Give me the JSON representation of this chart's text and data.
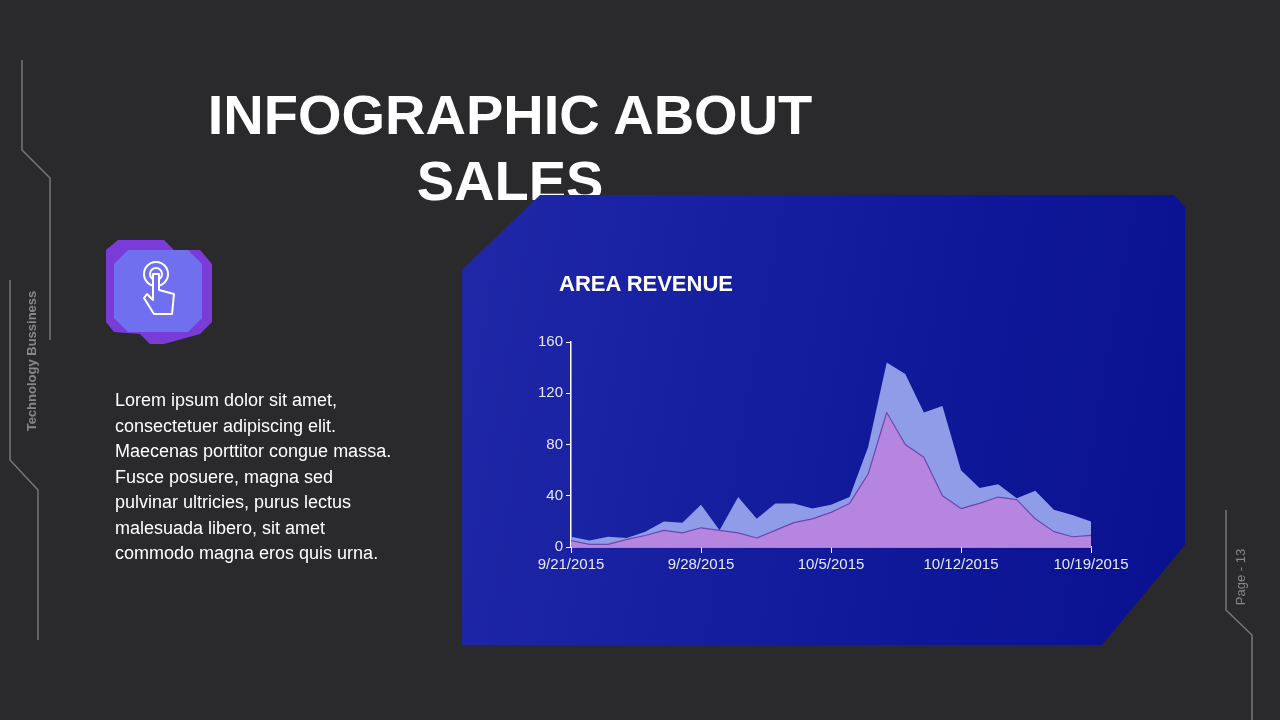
{
  "chart_data": {
    "type": "area",
    "title": "INFOGRAPHIC ABOUT SALES",
    "subtitle": "AREA REVENUE",
    "annotations": [
      "Lorem ipsum dolor sit amet, consectetuer adipiscing elit. Maecenas porttitor congue massa. Fusce posuere, magna sed pulvinar ultricies, purus lectus malesuada libero, sit amet commodo magna eros quis urna.",
      "Technology Bussiness",
      "Page - 13"
    ],
    "x": [
      "2015-09-21",
      "2015-09-22",
      "2015-09-23",
      "2015-09-24",
      "2015-09-25",
      "2015-09-26",
      "2015-09-27",
      "2015-09-28",
      "2015-09-29",
      "2015-09-30",
      "2015-10-01",
      "2015-10-02",
      "2015-10-03",
      "2015-10-04",
      "2015-10-05",
      "2015-10-06",
      "2015-10-07",
      "2015-10-08",
      "2015-10-09",
      "2015-10-10",
      "2015-10-11",
      "2015-10-12",
      "2015-10-13",
      "2015-10-14",
      "2015-10-15",
      "2015-10-16",
      "2015-10-17",
      "2015-10-18",
      "2015-10-19"
    ],
    "series": [
      {
        "color": "#8f9ce8",
        "values": [
          8,
          5,
          8,
          7,
          12,
          20,
          19,
          33,
          13,
          39,
          22,
          34,
          34,
          30,
          33,
          39,
          78,
          144,
          135,
          105,
          110,
          60,
          46,
          49,
          38,
          44,
          29,
          25,
          20
        ]
      },
      {
        "color": "#b585e0",
        "values": [
          5,
          2,
          2,
          6,
          9,
          13,
          11,
          15,
          13,
          11,
          7,
          13,
          19,
          22,
          27,
          34,
          57,
          105,
          80,
          70,
          40,
          30,
          34,
          39,
          37,
          22,
          12,
          8,
          9
        ]
      }
    ],
    "xlim": [
      "2015-09-21",
      "2015-10-19"
    ],
    "xticks": [
      {
        "value": "2015-09-21",
        "label": "9/21/2015"
      },
      {
        "value": "2015-09-28",
        "label": "9/28/2015"
      },
      {
        "value": "2015-10-05",
        "label": "10/5/2015"
      },
      {
        "value": "2015-10-12",
        "label": "10/12/2015"
      },
      {
        "value": "2015-10-19",
        "label": "10/19/2015"
      }
    ],
    "ylim": [
      0,
      160
    ],
    "yticks": [
      0,
      40,
      80,
      120,
      160
    ],
    "grid": false,
    "legend": false
  }
}
